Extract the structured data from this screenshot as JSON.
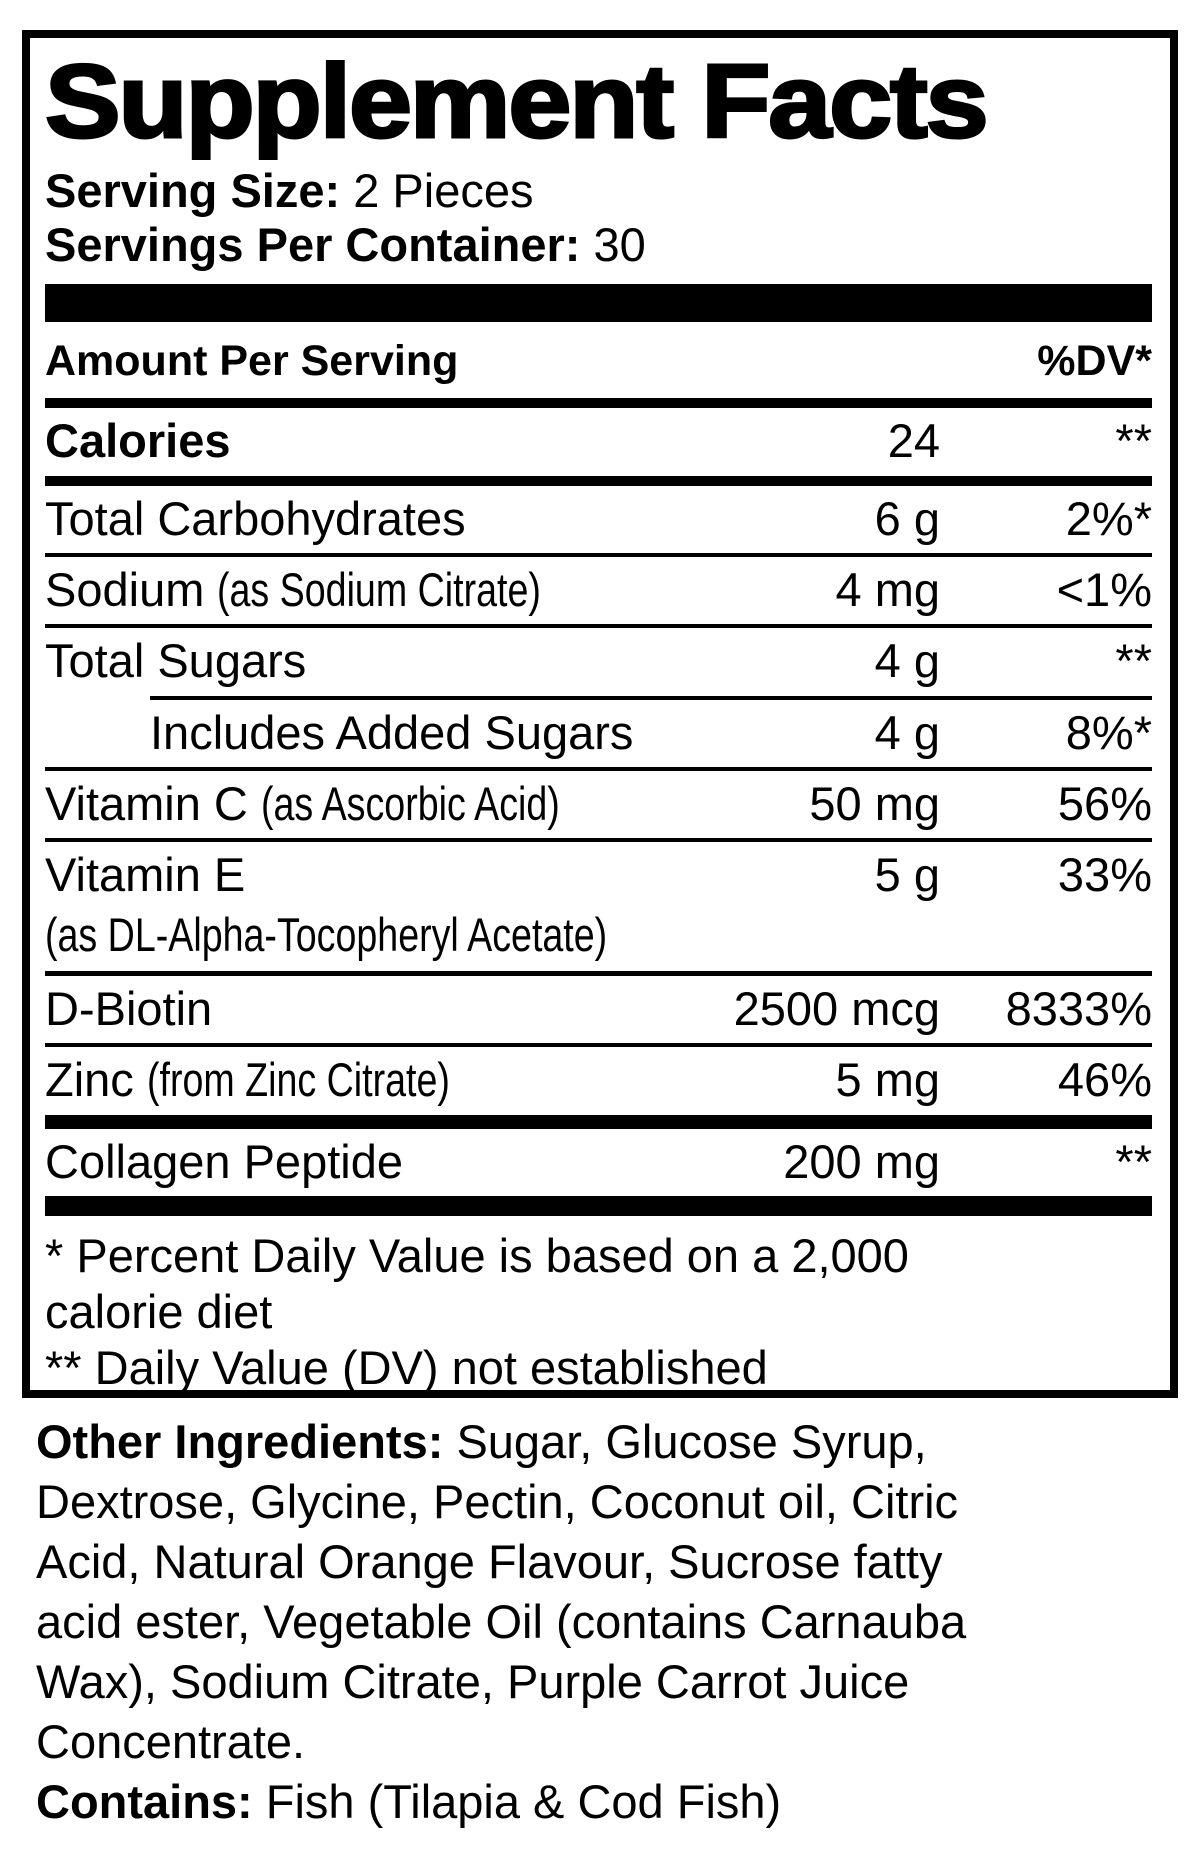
{
  "colors": {
    "text": "#000000",
    "background": "#ffffff"
  },
  "panel": {
    "title": "Supplement Facts",
    "serving_size": {
      "label": "Serving Size:",
      "value": "2 Pieces"
    },
    "servings_per_container": {
      "label": "Servings Per Container:",
      "value": "30"
    },
    "header": {
      "amount_label": "Amount Per Serving",
      "dv_label": "%DV*"
    },
    "rows": [
      {
        "name": "Calories",
        "amount": "24",
        "dv": "**",
        "bold": true,
        "rule_after": "med"
      },
      {
        "name": "Total Carbohydrates",
        "amount": "6 g",
        "dv": "2%*",
        "rule_after": "thin"
      },
      {
        "name": "Sodium",
        "note": "(as Sodium Citrate)",
        "amount": "4 mg",
        "dv": "<1%",
        "rule_after": "thin"
      },
      {
        "name": "Total Sugars",
        "amount": "4 g",
        "dv": "**",
        "rule_after": "thin indent"
      },
      {
        "name": "Includes Added Sugars",
        "amount": "4 g",
        "dv": "8%*",
        "indent": true,
        "rule_after": "thin"
      },
      {
        "name": "Vitamin C",
        "note": "(as Ascorbic Acid)",
        "amount": "50 mg",
        "dv": "56%",
        "rule_after": "thin"
      },
      {
        "name": "Vitamin E",
        "note_line": "(as DL-Alpha-Tocopheryl Acetate)",
        "amount": "5 g",
        "dv": "33%",
        "rule_after": "thin5"
      },
      {
        "name": "D-Biotin",
        "amount": "2500 mcg",
        "dv": "8333%",
        "rule_after": "thin"
      },
      {
        "name": "Zinc",
        "note": "(from Zinc Citrate)",
        "amount": "5 mg",
        "dv": "46%",
        "rule_after": "bar14"
      },
      {
        "name": "Collagen Peptide",
        "amount": "200 mg",
        "dv": "**",
        "rule_after": "bar20"
      }
    ],
    "footnote_lines": [
      "* Percent Daily Value is based on a 2,000",
      "calorie diet",
      "** Daily Value (DV) not established"
    ]
  },
  "other_ingredients": {
    "label": "Other Ingredients:",
    "first_line_rest": "Sugar, Glucose Syrup,",
    "lines": [
      "Dextrose, Glycine, Pectin, Coconut oil, Citric",
      "Acid, Natural Orange Flavour, Sucrose fatty",
      "acid ester, Vegetable Oil (contains Carnauba",
      "Wax), Sodium Citrate, Purple Carrot Juice",
      "Concentrate."
    ]
  },
  "contains": {
    "label": "Contains:",
    "text": "Fish (Tilapia & Cod Fish)"
  }
}
